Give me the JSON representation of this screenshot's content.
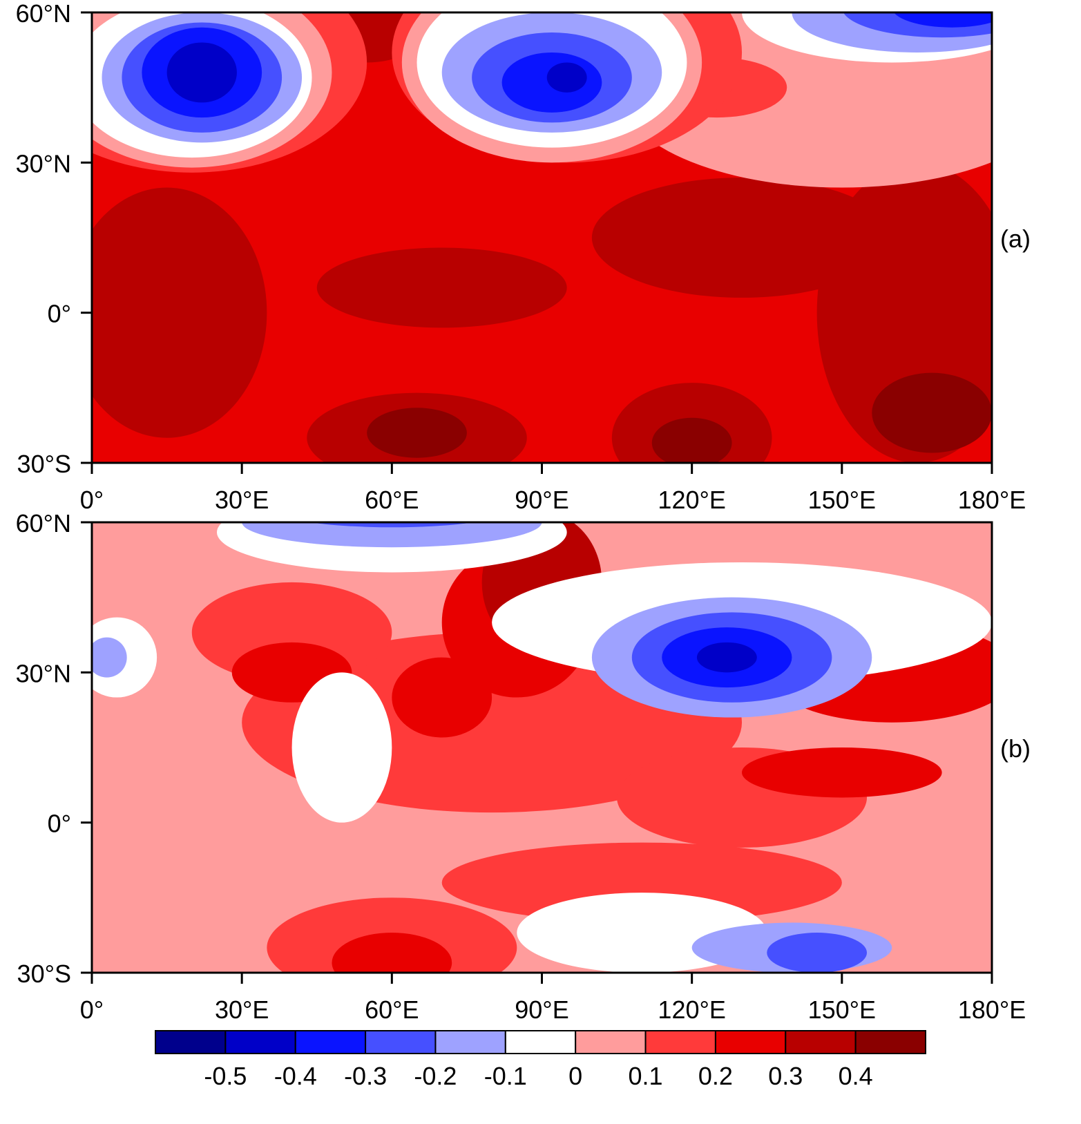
{
  "chart_data": [
    {
      "type": "contour",
      "label": "(a)",
      "xlim": [
        0,
        180
      ],
      "ylim": [
        -30,
        60
      ],
      "xticks": [
        {
          "value": 0,
          "label": "0°"
        },
        {
          "value": 30,
          "label": "30°E"
        },
        {
          "value": 60,
          "label": "60°E"
        },
        {
          "value": 90,
          "label": "90°E"
        },
        {
          "value": 120,
          "label": "120°E"
        },
        {
          "value": 150,
          "label": "150°E"
        },
        {
          "value": 180,
          "label": "180°E"
        }
      ],
      "yticks": [
        {
          "value": -30,
          "label": "30°S"
        },
        {
          "value": 0,
          "label": "0°"
        },
        {
          "value": 30,
          "label": "30°N"
        },
        {
          "value": 60,
          "label": "60°N"
        }
      ]
    },
    {
      "type": "contour",
      "label": "(b)",
      "xlim": [
        0,
        180
      ],
      "ylim": [
        -30,
        60
      ],
      "xticks": [
        {
          "value": 0,
          "label": "0°"
        },
        {
          "value": 30,
          "label": "30°E"
        },
        {
          "value": 60,
          "label": "60°E"
        },
        {
          "value": 90,
          "label": "90°E"
        },
        {
          "value": 120,
          "label": "120°E"
        },
        {
          "value": 150,
          "label": "150°E"
        },
        {
          "value": 180,
          "label": "180°E"
        }
      ],
      "yticks": [
        {
          "value": -30,
          "label": "30°S"
        },
        {
          "value": 0,
          "label": "0°"
        },
        {
          "value": 30,
          "label": "30°N"
        },
        {
          "value": 60,
          "label": "60°N"
        }
      ]
    }
  ],
  "colorbar": {
    "levels": [
      -0.5,
      -0.4,
      -0.3,
      -0.2,
      -0.1,
      0,
      0.1,
      0.2,
      0.3,
      0.4
    ],
    "colors": [
      "#00008c",
      "#0000c8",
      "#0a14ff",
      "#4650ff",
      "#9ea2ff",
      "#ffffff",
      "#ff9c9c",
      "#ff3a3a",
      "#e80000",
      "#b80000",
      "#8a0000"
    ]
  }
}
